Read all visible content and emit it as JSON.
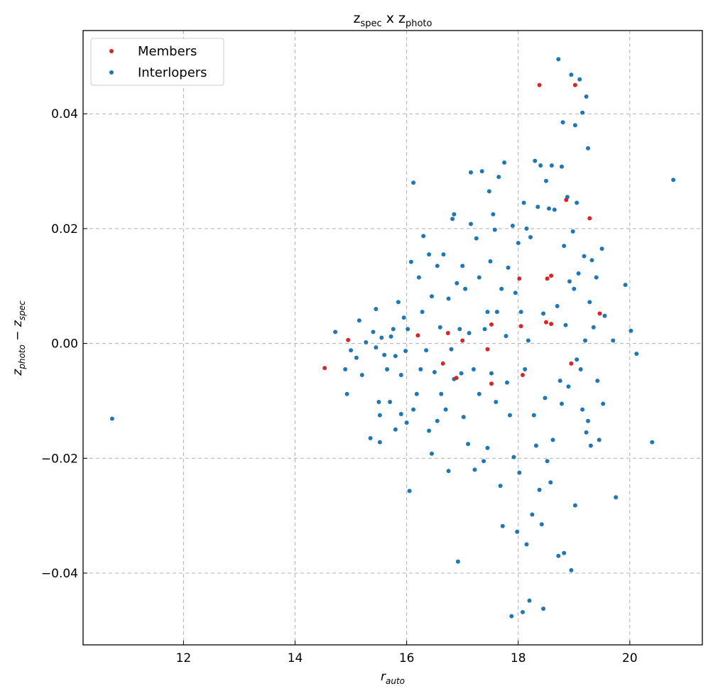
{
  "colors": {
    "members": "#d62728",
    "interlopers": "#1f77b4"
  },
  "chart_data": {
    "type": "scatter",
    "title": {
      "a": "z",
      "a_sub": "spec",
      "mid": " x ",
      "b": "z",
      "b_sub": "photo"
    },
    "xlabel": {
      "base": "r",
      "sub": "auto"
    },
    "ylabel": {
      "a": "z",
      "a_sub": "photo",
      "op": " − ",
      "b": "z",
      "b_sub": "spec"
    },
    "xlim": [
      10.2,
      21.3
    ],
    "ylim": [
      -0.0525,
      0.0545
    ],
    "x_ticks": [
      12,
      14,
      16,
      18,
      20
    ],
    "x_tick_labels": [
      "12",
      "14",
      "16",
      "18",
      "20"
    ],
    "y_ticks": [
      -0.04,
      -0.02,
      0.0,
      0.02,
      0.04
    ],
    "y_tick_labels": [
      "−0.04",
      "−0.02",
      "0.00",
      "0.02",
      "0.04"
    ],
    "grid": true,
    "legend_position": "upper-left",
    "series": [
      {
        "name": "Members",
        "color": "#d62728",
        "points": [
          [
            14.53,
            -0.0043
          ],
          [
            14.95,
            0.0006
          ],
          [
            16.2,
            0.0014
          ],
          [
            16.65,
            -0.0035
          ],
          [
            16.74,
            0.0018
          ],
          [
            16.89,
            -0.006
          ],
          [
            17.0,
            0.0005
          ],
          [
            17.45,
            -0.001
          ],
          [
            17.52,
            0.0033
          ],
          [
            17.52,
            -0.007
          ],
          [
            18.02,
            0.0113
          ],
          [
            18.05,
            0.003
          ],
          [
            18.08,
            -0.0055
          ],
          [
            18.38,
            0.045
          ],
          [
            18.5,
            0.0037
          ],
          [
            18.52,
            0.0113
          ],
          [
            18.59,
            0.0118
          ],
          [
            18.59,
            0.0034
          ],
          [
            18.86,
            0.025
          ],
          [
            18.95,
            -0.0035
          ],
          [
            19.02,
            0.045
          ],
          [
            19.28,
            0.0218
          ],
          [
            19.46,
            0.0052
          ]
        ]
      },
      {
        "name": "Interlopers",
        "color": "#1f77b4",
        "points": [
          [
            10.72,
            -0.0131
          ],
          [
            14.72,
            0.002
          ],
          [
            14.9,
            -0.0045
          ],
          [
            14.93,
            -0.0088
          ],
          [
            15.0,
            -0.0012
          ],
          [
            15.1,
            -0.0025
          ],
          [
            15.15,
            0.004
          ],
          [
            15.2,
            -0.0055
          ],
          [
            15.27,
            0.0002
          ],
          [
            15.35,
            -0.0165
          ],
          [
            15.4,
            0.002
          ],
          [
            15.45,
            -0.0007
          ],
          [
            15.45,
            0.006
          ],
          [
            15.5,
            -0.0102
          ],
          [
            15.52,
            -0.0125
          ],
          [
            15.52,
            -0.0172
          ],
          [
            15.55,
            0.001
          ],
          [
            15.6,
            -0.002
          ],
          [
            15.65,
            -0.0045
          ],
          [
            15.7,
            -0.0102
          ],
          [
            15.72,
            0.0012
          ],
          [
            15.76,
            0.0025
          ],
          [
            15.8,
            -0.0022
          ],
          [
            15.8,
            -0.015
          ],
          [
            15.85,
            0.0072
          ],
          [
            15.9,
            -0.0055
          ],
          [
            15.9,
            -0.0123
          ],
          [
            15.95,
            0.0045
          ],
          [
            15.98,
            -0.0013
          ],
          [
            16.0,
            -0.0138
          ],
          [
            16.02,
            0.0025
          ],
          [
            16.05,
            -0.0257
          ],
          [
            16.08,
            0.0142
          ],
          [
            16.12,
            -0.0115
          ],
          [
            16.12,
            0.028
          ],
          [
            16.18,
            -0.0088
          ],
          [
            16.22,
            0.0115
          ],
          [
            16.25,
            -0.0045
          ],
          [
            16.28,
            0.0055
          ],
          [
            16.3,
            0.0187
          ],
          [
            16.35,
            -0.0012
          ],
          [
            16.4,
            0.0155
          ],
          [
            16.4,
            -0.0152
          ],
          [
            16.45,
            -0.0192
          ],
          [
            16.45,
            0.0082
          ],
          [
            16.5,
            -0.005
          ],
          [
            16.55,
            0.0135
          ],
          [
            16.55,
            -0.0135
          ],
          [
            16.6,
            0.0028
          ],
          [
            16.62,
            -0.0088
          ],
          [
            16.66,
            0.0155
          ],
          [
            16.7,
            -0.0115
          ],
          [
            16.75,
            0.0078
          ],
          [
            16.75,
            -0.0222
          ],
          [
            16.8,
            -0.001
          ],
          [
            16.82,
            0.0217
          ],
          [
            16.85,
            0.0225
          ],
          [
            16.85,
            -0.0062
          ],
          [
            16.9,
            0.0105
          ],
          [
            16.92,
            -0.038
          ],
          [
            16.95,
            0.0025
          ],
          [
            16.98,
            -0.0052
          ],
          [
            17.0,
            0.0135
          ],
          [
            17.02,
            -0.0128
          ],
          [
            17.05,
            0.0095
          ],
          [
            17.1,
            -0.0175
          ],
          [
            17.12,
            0.0018
          ],
          [
            17.15,
            0.0208
          ],
          [
            17.15,
            0.0298
          ],
          [
            17.2,
            -0.0045
          ],
          [
            17.22,
            -0.022
          ],
          [
            17.25,
            0.0183
          ],
          [
            17.3,
            0.0115
          ],
          [
            17.3,
            -0.0088
          ],
          [
            17.35,
            0.03
          ],
          [
            17.38,
            -0.0205
          ],
          [
            17.4,
            0.0025
          ],
          [
            17.45,
            0.0055
          ],
          [
            17.45,
            -0.0182
          ],
          [
            17.48,
            0.0265
          ],
          [
            17.5,
            0.0143
          ],
          [
            17.52,
            -0.0052
          ],
          [
            17.55,
            0.0225
          ],
          [
            17.58,
            0.0198
          ],
          [
            17.6,
            -0.0102
          ],
          [
            17.62,
            0.0055
          ],
          [
            17.65,
            0.029
          ],
          [
            17.68,
            -0.0248
          ],
          [
            17.7,
            0.0095
          ],
          [
            17.72,
            -0.0318
          ],
          [
            17.75,
            0.0315
          ],
          [
            17.78,
            0.0013
          ],
          [
            17.8,
            -0.0068
          ],
          [
            17.82,
            0.0132
          ],
          [
            17.85,
            -0.0125
          ],
          [
            17.88,
            -0.0475
          ],
          [
            17.9,
            0.0205
          ],
          [
            17.92,
            -0.0198
          ],
          [
            17.95,
            0.0088
          ],
          [
            17.98,
            -0.0328
          ],
          [
            18.0,
            0.0175
          ],
          [
            18.02,
            -0.0225
          ],
          [
            18.05,
            0.0055
          ],
          [
            18.08,
            -0.0468
          ],
          [
            18.1,
            0.0245
          ],
          [
            18.12,
            -0.0045
          ],
          [
            18.15,
            0.02
          ],
          [
            18.15,
            -0.035
          ],
          [
            18.18,
            0.0005
          ],
          [
            18.2,
            -0.0448
          ],
          [
            18.22,
            0.0185
          ],
          [
            18.25,
            -0.0298
          ],
          [
            18.28,
            -0.0125
          ],
          [
            18.3,
            0.0318
          ],
          [
            18.32,
            -0.0178
          ],
          [
            18.35,
            0.0238
          ],
          [
            18.38,
            -0.0255
          ],
          [
            18.4,
            0.031
          ],
          [
            18.42,
            -0.0315
          ],
          [
            18.45,
            -0.0462
          ],
          [
            18.45,
            0.0052
          ],
          [
            18.48,
            -0.0095
          ],
          [
            18.5,
            0.0283
          ],
          [
            18.52,
            -0.0205
          ],
          [
            18.55,
            0.0235
          ],
          [
            18.58,
            -0.0242
          ],
          [
            18.6,
            0.031
          ],
          [
            18.62,
            -0.0168
          ],
          [
            18.65,
            0.0233
          ],
          [
            18.7,
            0.0065
          ],
          [
            18.72,
            0.0495
          ],
          [
            18.72,
            -0.037
          ],
          [
            18.75,
            -0.0065
          ],
          [
            18.78,
            0.0308
          ],
          [
            18.78,
            -0.0105
          ],
          [
            18.8,
            0.0385
          ],
          [
            18.82,
            0.017
          ],
          [
            18.82,
            -0.0365
          ],
          [
            18.85,
            0.0032
          ],
          [
            18.88,
            0.0255
          ],
          [
            18.9,
            -0.0075
          ],
          [
            18.92,
            0.0108
          ],
          [
            18.95,
            0.0468
          ],
          [
            18.95,
            -0.0395
          ],
          [
            18.98,
            0.0195
          ],
          [
            19.0,
            0.0095
          ],
          [
            19.02,
            0.038
          ],
          [
            19.02,
            -0.0282
          ],
          [
            19.05,
            0.0245
          ],
          [
            19.05,
            -0.0028
          ],
          [
            19.08,
            0.0122
          ],
          [
            19.1,
            0.046
          ],
          [
            19.12,
            -0.0045
          ],
          [
            19.15,
            0.0402
          ],
          [
            19.15,
            -0.0115
          ],
          [
            19.18,
            0.0152
          ],
          [
            19.2,
            0.0005
          ],
          [
            19.22,
            0.043
          ],
          [
            19.22,
            -0.0155
          ],
          [
            19.25,
            0.034
          ],
          [
            19.25,
            -0.0135
          ],
          [
            19.28,
            0.0072
          ],
          [
            19.3,
            -0.0178
          ],
          [
            19.32,
            0.0145
          ],
          [
            19.35,
            0.0028
          ],
          [
            19.4,
            0.0115
          ],
          [
            19.42,
            -0.0065
          ],
          [
            19.45,
            -0.0168
          ],
          [
            19.5,
            0.0165
          ],
          [
            19.52,
            -0.0105
          ],
          [
            19.55,
            0.0048
          ],
          [
            19.7,
            0.0005
          ],
          [
            19.75,
            -0.0268
          ],
          [
            19.92,
            0.0102
          ],
          [
            20.02,
            0.0022
          ],
          [
            20.12,
            -0.0018
          ],
          [
            20.4,
            -0.0172
          ],
          [
            20.78,
            0.0285
          ]
        ]
      }
    ]
  }
}
